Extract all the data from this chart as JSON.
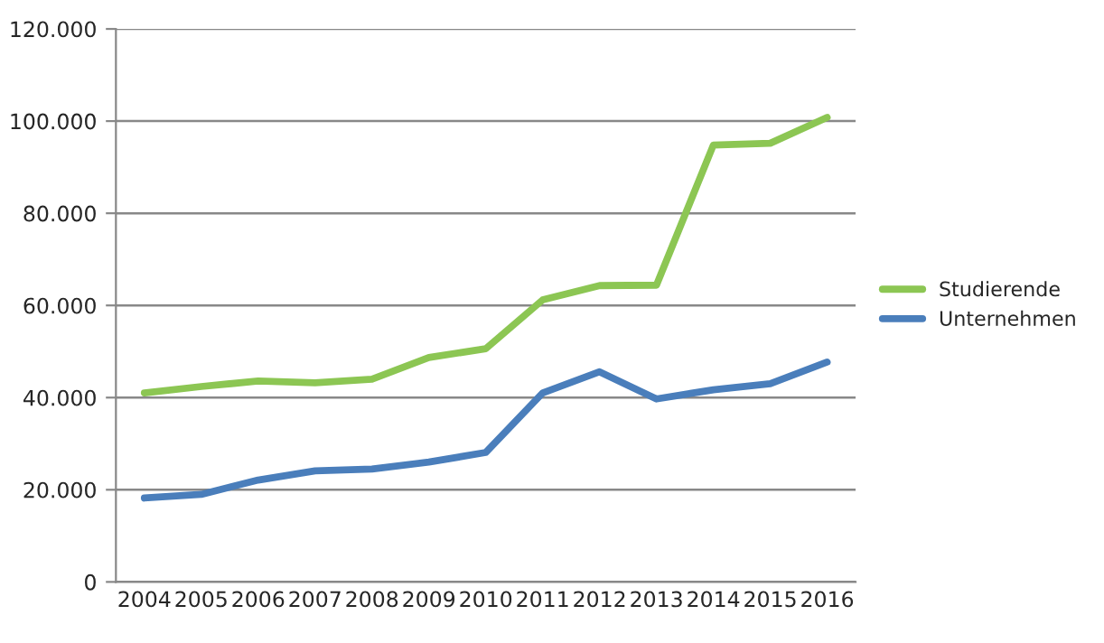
{
  "chart_data": {
    "type": "line",
    "categories": [
      "2004",
      "2005",
      "2006",
      "2007",
      "2008",
      "2009",
      "2010",
      "2011",
      "2012",
      "2013",
      "2014",
      "2015",
      "2016"
    ],
    "series": [
      {
        "name": "Studierende",
        "color": "#8cc653",
        "values": [
          41000,
          42400,
          43600,
          43200,
          44000,
          48700,
          50600,
          61200,
          64300,
          64400,
          94800,
          95200,
          100800
        ]
      },
      {
        "name": "Unternehmen",
        "color": "#4a7ebb",
        "values": [
          18200,
          19000,
          22100,
          24100,
          24500,
          26000,
          28100,
          41000,
          45600,
          39700,
          41700,
          43000,
          47700
        ]
      }
    ],
    "ylim": [
      0,
      120000
    ],
    "yticks": [
      {
        "value": 0,
        "label": "0"
      },
      {
        "value": 20000,
        "label": "20.000"
      },
      {
        "value": 40000,
        "label": "40.000"
      },
      {
        "value": 60000,
        "label": "60.000"
      },
      {
        "value": 80000,
        "label": "80.000"
      },
      {
        "value": 100000,
        "label": "100.000"
      },
      {
        "value": 120000,
        "label": "120.000"
      }
    ],
    "grid": "y",
    "legend": "right",
    "marker": "none",
    "line_style": "solid"
  }
}
